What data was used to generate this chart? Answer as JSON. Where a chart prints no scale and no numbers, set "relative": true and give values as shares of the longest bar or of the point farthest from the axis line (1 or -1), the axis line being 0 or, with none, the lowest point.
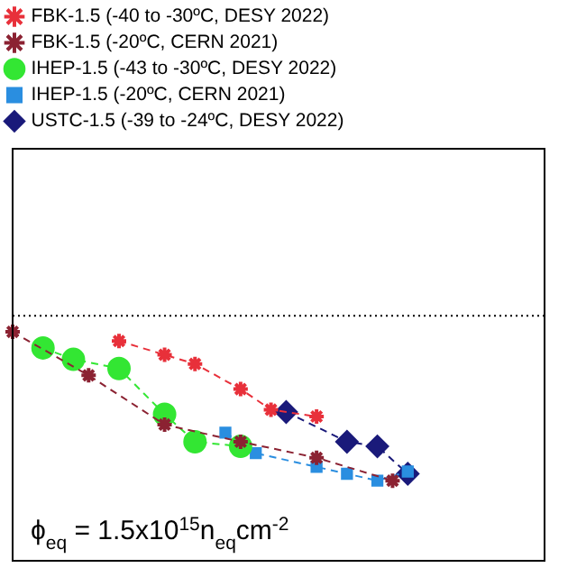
{
  "chart_data": {
    "type": "line",
    "relative": true,
    "categories": [
      null,
      null,
      null,
      null,
      null,
      null,
      null,
      null,
      null,
      null,
      null,
      null,
      null,
      null,
      null,
      null,
      null,
      null,
      null,
      null,
      null,
      null,
      null,
      null,
      null,
      null,
      null,
      null,
      null,
      null,
      null,
      null,
      null,
      null,
      null,
      null
    ],
    "series": [
      {
        "name": "FBK-1.5 (-40 to -30ºC, DESY 2022)",
        "color": "#e8303a",
        "marker": "cross",
        "values": [
          null,
          null,
          null,
          null,
          null,
          null,
          null,
          0.96,
          null,
          null,
          0.9,
          null,
          0.86,
          null,
          null,
          0.75,
          null,
          0.66,
          null,
          null,
          0.63,
          null,
          null,
          null,
          null,
          null,
          null,
          null,
          null,
          null,
          null,
          null,
          null,
          null,
          null,
          null
        ]
      },
      {
        "name": "FBK-1.5 (-20ºC, CERN 2021)",
        "color": "#8b2232",
        "marker": "cross",
        "values": [
          1.0,
          null,
          null,
          null,
          null,
          0.81,
          null,
          null,
          null,
          null,
          0.595,
          null,
          null,
          null,
          null,
          0.52,
          null,
          null,
          null,
          null,
          0.45,
          null,
          null,
          null,
          null,
          0.35,
          null,
          null,
          null,
          null,
          null,
          null,
          null,
          null,
          null,
          null
        ]
      },
      {
        "name": "IHEP-1.5 (-43 to -30ºC, DESY 2022)",
        "color": "#33e633",
        "marker": "circle",
        "values": [
          null,
          null,
          0.93,
          null,
          0.88,
          null,
          null,
          0.84,
          null,
          null,
          0.64,
          null,
          0.52,
          null,
          null,
          0.5,
          null,
          null,
          null,
          null,
          null,
          null,
          null,
          null,
          null,
          null,
          null,
          null,
          null,
          null,
          null,
          null,
          null,
          null,
          null,
          null
        ]
      },
      {
        "name": "IHEP-1.5 (-20ºC, CERN 2021)",
        "color": "#2a8ee0",
        "marker": "square",
        "values": [
          null,
          null,
          null,
          null,
          null,
          null,
          null,
          null,
          null,
          null,
          null,
          null,
          null,
          null,
          0.56,
          null,
          0.47,
          null,
          null,
          null,
          0.41,
          null,
          0.38,
          null,
          0.35,
          null,
          0.39,
          null,
          null,
          null,
          null,
          null,
          null,
          null,
          null,
          null
        ]
      },
      {
        "name": "USTC-1.5 (-39 to -24ºC, DESY 2022)",
        "color": "#1a1a7a",
        "marker": "diamond",
        "values": [
          null,
          null,
          null,
          null,
          null,
          null,
          null,
          null,
          null,
          null,
          null,
          null,
          null,
          null,
          null,
          null,
          null,
          null,
          0.65,
          null,
          null,
          null,
          0.52,
          null,
          0.5,
          null,
          0.38,
          null,
          null,
          null,
          null,
          null,
          null,
          null,
          null,
          null
        ]
      }
    ],
    "line_style": "dashed",
    "legend": "top left",
    "grid": false,
    "tick_labels": false,
    "ref_lines": [
      {
        "axis": "y",
        "value": 1.07,
        "line_style": "dotted",
        "color": "#000000"
      }
    ],
    "annotations": [
      "ϕ$_{eq}$ = 1.5x10$^{15}$n$_{eq}$cm$^{-2}$"
    ]
  }
}
